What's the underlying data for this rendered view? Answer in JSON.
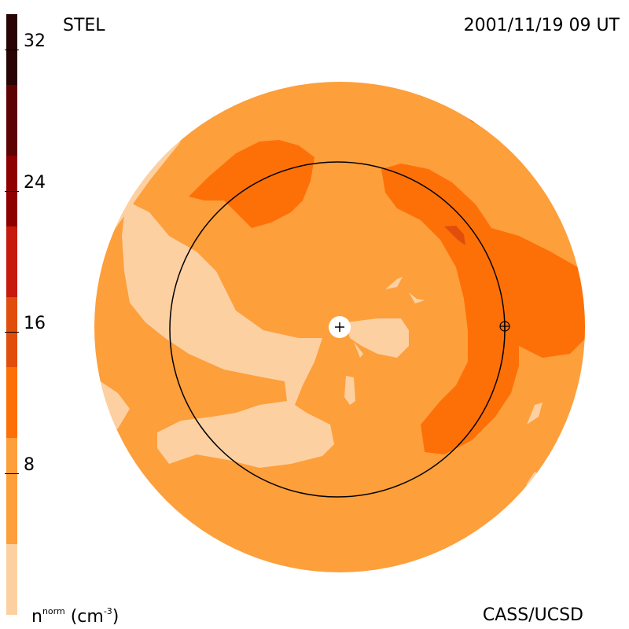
{
  "header": {
    "source": "STEL",
    "timestamp": "2001/11/19 09 UT"
  },
  "footer": {
    "credit": "CASS/UCSD",
    "unit_symbol": "n",
    "unit_superscript": "norm",
    "unit_open": " (cm",
    "unit_exponent": "-3",
    "unit_close": ")"
  },
  "colors": {
    "level_0_4": "#fdd0a2",
    "level_4_10": "#fd9f3b",
    "level_10_14": "#fd7008",
    "level_14_18": "#e14e0c",
    "level_18_22": "#c51a0c",
    "level_22_26": "#8e0000",
    "level_26_30": "#5e0303",
    "level_30_34": "#2a0404",
    "orbit_line": "#000000"
  },
  "chart_data": {
    "type": "heatmap",
    "quantity": "n^norm (cm^-3)",
    "colorbar": {
      "range": [
        0,
        34
      ],
      "ticks": [
        8,
        16,
        24,
        32
      ],
      "tick_labels": [
        "8",
        "16",
        "24",
        "32"
      ],
      "levels": [
        {
          "from": 0,
          "to": 4,
          "color": "#fdd0a2"
        },
        {
          "from": 4,
          "to": 10,
          "color": "#fd9f3b"
        },
        {
          "from": 10,
          "to": 14,
          "color": "#fd7008"
        },
        {
          "from": 14,
          "to": 18,
          "color": "#e14e0c"
        },
        {
          "from": 18,
          "to": 22,
          "color": "#c51a0c"
        },
        {
          "from": 22,
          "to": 26,
          "color": "#8e0000"
        },
        {
          "from": 26,
          "to": 30,
          "color": "#5e0303"
        },
        {
          "from": 30,
          "to": 34,
          "color": "#2a0404"
        }
      ]
    },
    "markers": {
      "sun": "+",
      "earth": "⊕"
    }
  }
}
